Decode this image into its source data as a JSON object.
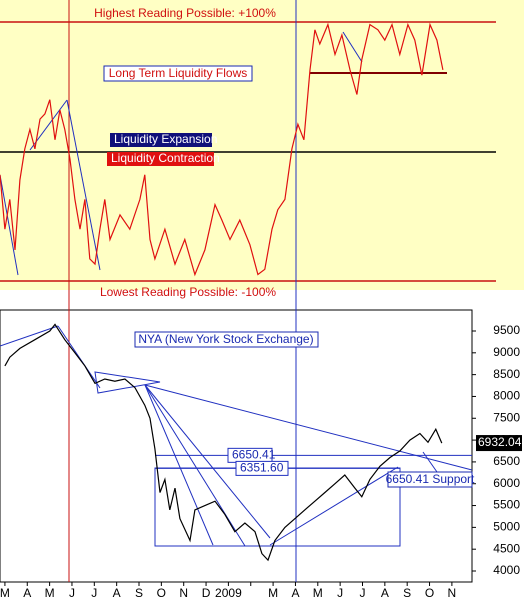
{
  "chart_data": [
    {
      "type": "line",
      "annotations": [
        "Highest Reading Possible: +100%",
        "Long Term Liquidity Flows",
        "Liquidity Expansion",
        "Liquidity Contraction",
        "Lowest Reading Possible: -100%"
      ],
      "xlim": [
        -0.22,
        20.9
      ],
      "ylim": [
        -107,
        117
      ],
      "background": "#ffffc4",
      "series": [
        {
          "color": "#e01010",
          "x": [
            -0.22,
            0,
            0.22,
            0.45,
            0.67,
            0.89,
            1.12,
            1.34,
            1.57,
            1.79,
            2.01,
            2.24,
            2.46,
            2.68,
            2.91,
            3.13,
            3.36,
            3.58,
            3.8,
            4.03,
            4.25,
            4.47,
            4.7,
            5.15,
            5.59,
            6.04,
            6.26,
            6.49,
            6.71,
            7.16,
            7.61,
            8.05,
            8.5,
            8.95,
            9.4,
            9.71,
            10.07,
            10.51,
            10.96,
            11.32,
            11.63,
            11.95,
            12.21,
            12.53,
            12.84,
            13.11,
            13.38,
            13.65,
            13.87,
            14.09,
            14.45,
            14.77,
            15.08,
            15.44,
            15.75,
            15.97,
            16.33,
            16.69,
            17.0,
            17.32,
            17.67,
            18.03,
            18.34,
            18.66,
            19.02,
            19.33,
            19.6
          ],
          "values": [
            -18,
            -60,
            -37,
            -76,
            -22,
            2,
            17,
            2,
            25,
            29,
            40,
            9,
            32,
            17,
            -6,
            -37,
            -60,
            -37,
            -83,
            -87,
            -60,
            -37,
            -68,
            -49,
            -60,
            -37,
            -18,
            -68,
            -83,
            -60,
            -87,
            -68,
            -95,
            -76,
            -41,
            -53,
            -68,
            -53,
            -72,
            -95,
            -91,
            -60,
            -45,
            -37,
            2,
            21,
            9,
            63,
            94,
            83,
            98,
            75,
            90,
            63,
            44,
            71,
            98,
            94,
            86,
            98,
            75,
            98,
            86,
            59,
            98,
            86,
            63
          ]
        }
      ]
    },
    {
      "type": "line",
      "annotations": [
        "NYA (New York Stock Exchange)",
        "6650.41 Support"
      ],
      "categories": [
        "M",
        "A",
        "M",
        "J",
        "J",
        "A",
        "S",
        "O",
        "N",
        "D",
        "2009",
        null,
        "M",
        "A",
        "M",
        "J",
        "J",
        "A",
        "S",
        "O",
        "N"
      ],
      "xlim": [
        -0.22,
        20.9
      ],
      "ylim": [
        3794,
        9981
      ],
      "yticks": [
        4000,
        4500,
        5000,
        5500,
        6000,
        6500,
        7000,
        7500,
        8000,
        8500,
        9000,
        9500
      ],
      "levels": [
        6650.41,
        {
          "value": 6351.6,
          "label": "6351.60"
        }
      ],
      "background": "#ffffff",
      "series": [
        {
          "color": "#000000",
          "x": [
            0,
            0.22,
            0.67,
            1.34,
            2.01,
            2.24,
            2.68,
            3.13,
            3.58,
            4.03,
            4.47,
            4.92,
            5.37,
            5.82,
            6.26,
            6.49,
            6.71,
            6.94,
            7.16,
            7.38,
            7.61,
            7.83,
            8.28,
            8.5,
            8.95,
            9.4,
            9.84,
            10.29,
            10.74,
            11.19,
            11.5,
            11.77,
            12.08,
            12.53,
            12.98,
            13.42,
            13.87,
            14.32,
            14.77,
            15.21,
            15.66,
            15.97,
            16.33,
            16.78,
            17.23,
            17.67,
            18.12,
            18.57,
            18.93,
            19.28,
            19.55
          ],
          "values": [
            8700,
            8900,
            9100,
            9300,
            9500,
            9650,
            9300,
            9000,
            8700,
            8300,
            8400,
            8350,
            8400,
            8200,
            7800,
            7500,
            6800,
            5800,
            6100,
            5400,
            5900,
            5200,
            4700,
            5400,
            5500,
            5600,
            5300,
            4900,
            5100,
            4900,
            4400,
            4250,
            4700,
            5000,
            5200,
            5400,
            5600,
            5800,
            6000,
            6200,
            5900,
            5700,
            6100,
            6400,
            6600,
            6750,
            7000,
            7150,
            6950,
            7250,
            6932.04
          ]
        }
      ]
    }
  ]
}
